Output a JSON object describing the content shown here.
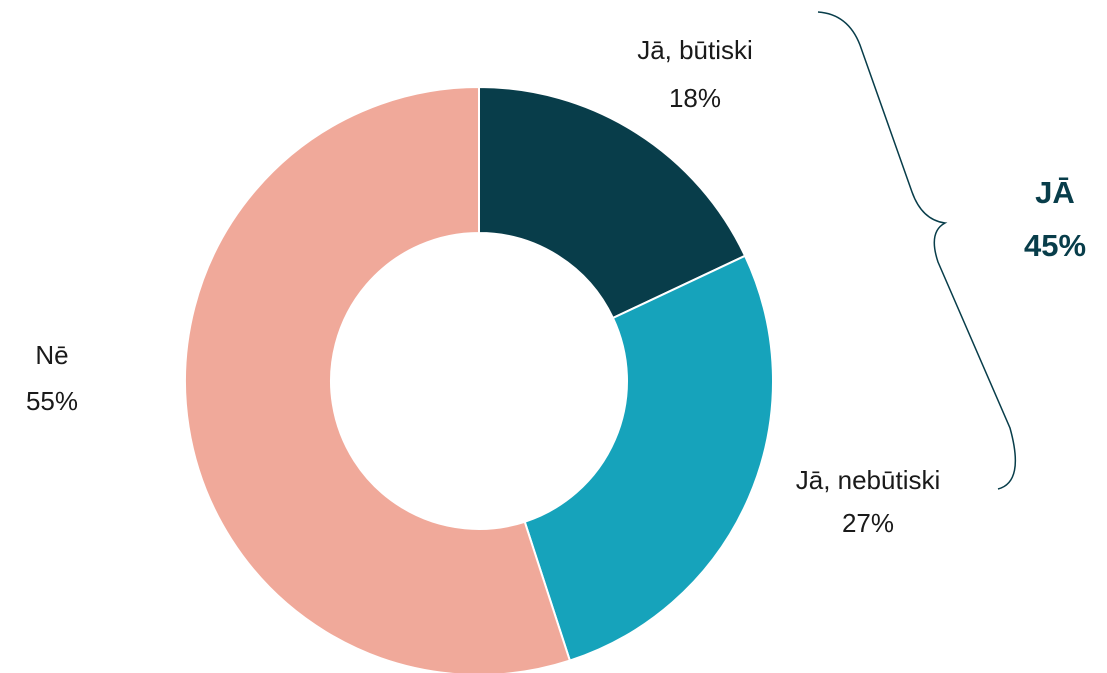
{
  "chart_data": {
    "type": "donut",
    "categories": [
      "Jā, būtiski",
      "Jā, nebūtiski",
      "Nē"
    ],
    "values": [
      18,
      27,
      55
    ],
    "value_labels": [
      "18%",
      "27%",
      "55%"
    ],
    "colors": [
      "#083d4a",
      "#16a3bb",
      "#f0a99a"
    ],
    "bracket": {
      "label": "JĀ",
      "value_label": "45%"
    }
  }
}
